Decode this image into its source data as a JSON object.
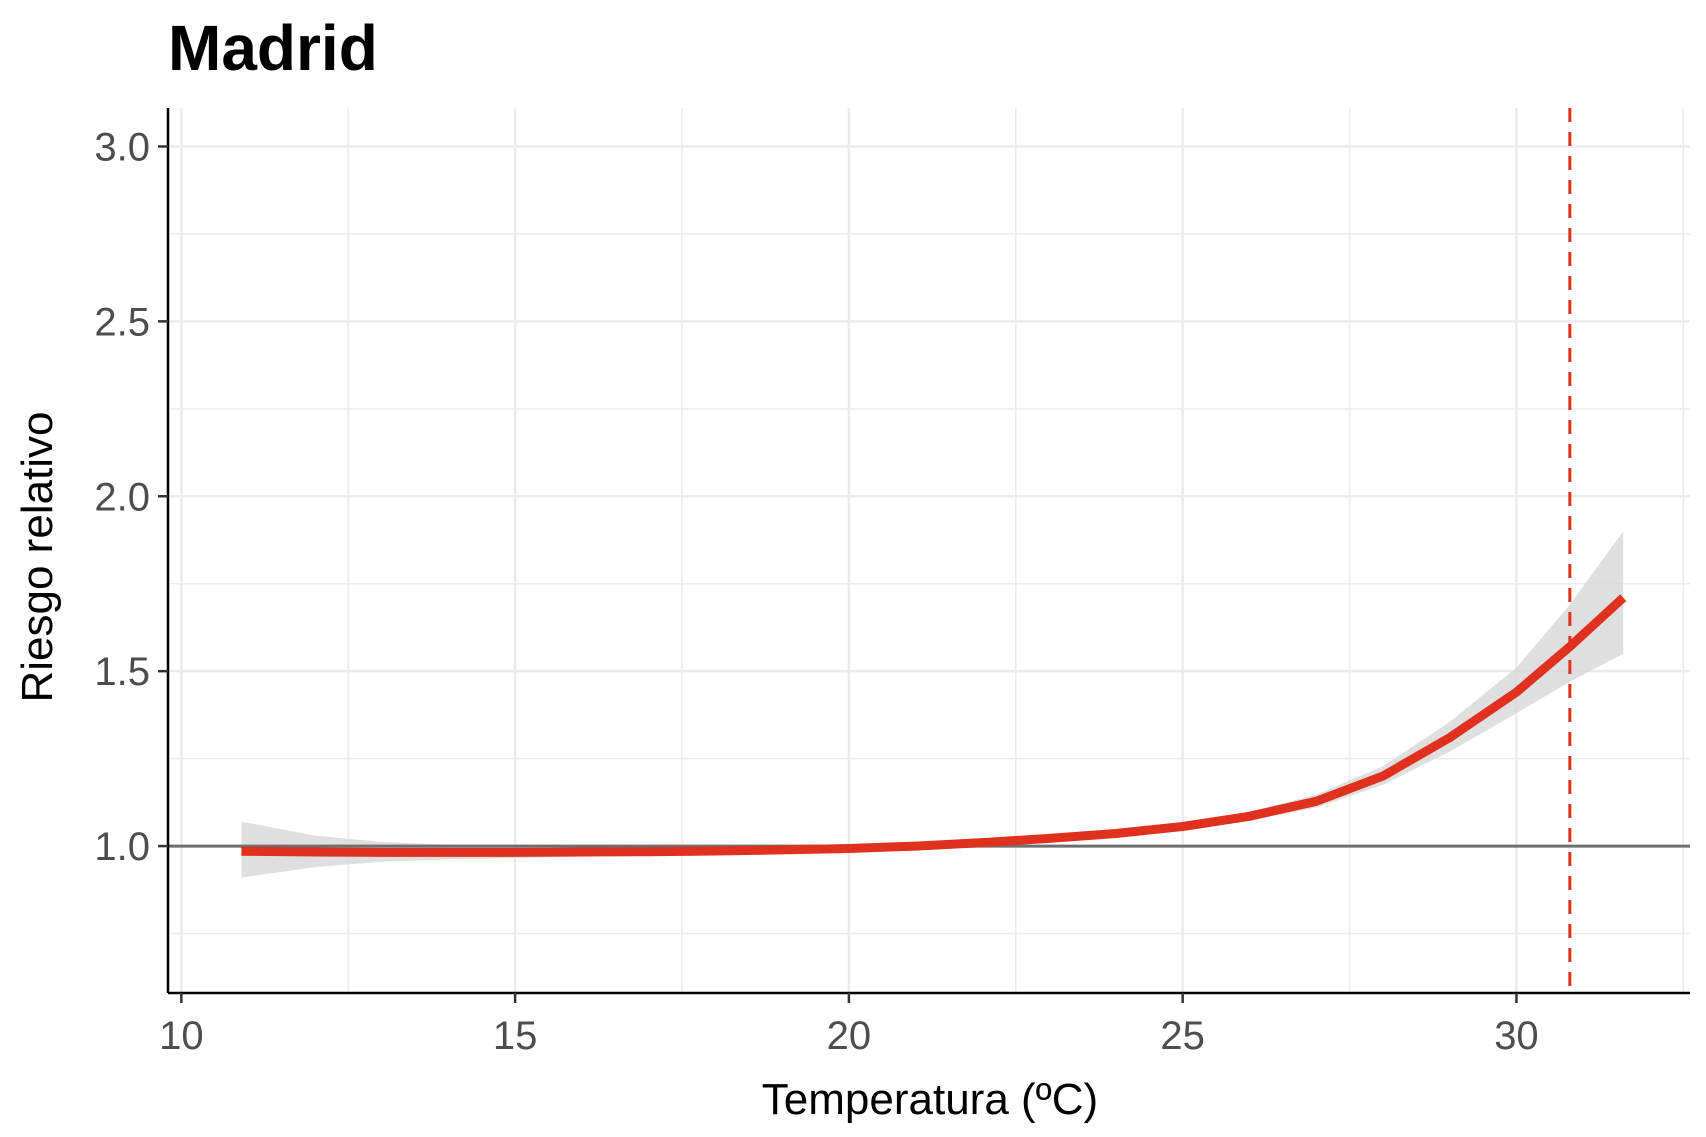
{
  "chart_data": {
    "type": "line",
    "title": "Madrid",
    "xlabel": "Temperatura (ºC)",
    "ylabel": "Riesgo relativo",
    "xlim": [
      9.8,
      32.6
    ],
    "ylim": [
      0.58,
      3.11
    ],
    "x_ticks": [
      10,
      15,
      20,
      25,
      30
    ],
    "x_tick_labels": [
      "10",
      "15",
      "20",
      "25",
      "30"
    ],
    "y_ticks": [
      1.0,
      1.5,
      2.0,
      2.5,
      3.0
    ],
    "y_tick_labels": [
      "1.0",
      "1.5",
      "2.0",
      "2.5",
      "3.0"
    ],
    "reference_line_y": 1.0,
    "threshold_line_x": 30.8,
    "grid": true,
    "legend": "none",
    "colors": {
      "curve": "#e0301e",
      "ci_band": "#d9d9d9",
      "reference": "#6e6e6e",
      "threshold": "#e0301e",
      "grid": "#ebebeb"
    },
    "series": [
      {
        "x": [
          10.9,
          12,
          13,
          14,
          15,
          16,
          17,
          18,
          19,
          20,
          21,
          22,
          23,
          24,
          25,
          26,
          27,
          28,
          29,
          30,
          30.8,
          31.6
        ],
        "values": [
          0.985,
          0.983,
          0.982,
          0.982,
          0.982,
          0.983,
          0.984,
          0.986,
          0.989,
          0.993,
          1.0,
          1.01,
          1.022,
          1.036,
          1.056,
          1.085,
          1.128,
          1.2,
          1.31,
          1.44,
          1.57,
          1.71
        ],
        "ci_lower": [
          0.91,
          0.94,
          0.955,
          0.962,
          0.966,
          0.97,
          0.974,
          0.977,
          0.981,
          0.986,
          0.993,
          1.003,
          1.014,
          1.028,
          1.046,
          1.072,
          1.11,
          1.175,
          1.27,
          1.38,
          1.47,
          1.55
        ],
        "ci_upper": [
          1.07,
          1.03,
          1.012,
          1.004,
          0.999,
          0.997,
          0.995,
          0.996,
          0.998,
          1.001,
          1.007,
          1.017,
          1.03,
          1.045,
          1.066,
          1.098,
          1.147,
          1.228,
          1.355,
          1.51,
          1.69,
          1.9
        ]
      }
    ]
  }
}
